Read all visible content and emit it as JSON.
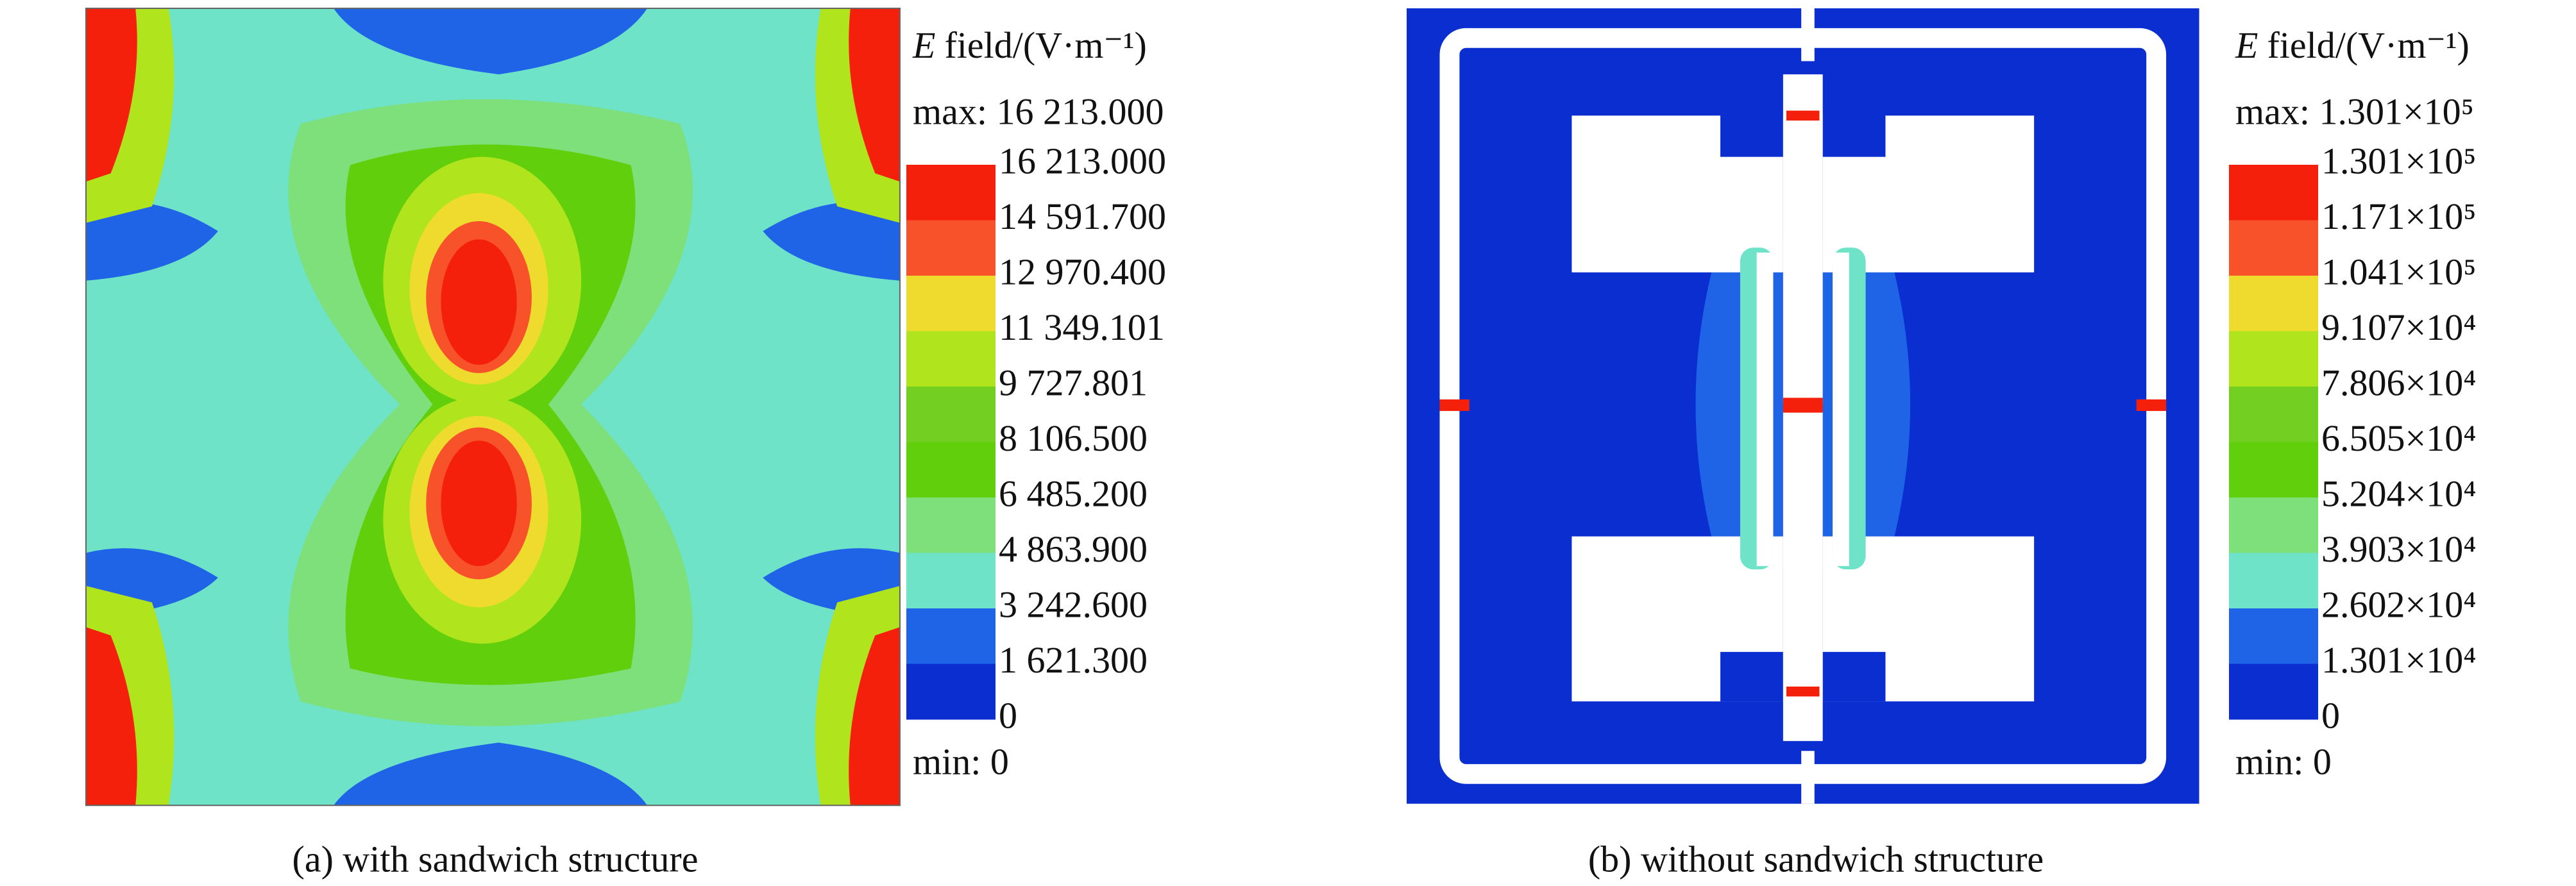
{
  "colors": [
    "#f5200c",
    "#f7522a",
    "#eedb2e",
    "#b0e41c",
    "#74cf23",
    "#61cf0b",
    "#7de07a",
    "#6ee3c8",
    "#1f63e6",
    "#0a2ed0"
  ],
  "panels": [
    {
      "legend_symbol": "E",
      "legend_unit": "field/(V·m⁻¹)",
      "max_label": "max: 16 213.000",
      "levels": [
        "16 213.000",
        "14 591.700",
        "12 970.400",
        "11 349.101",
        "9 727.801",
        "8 106.500",
        "6 485.200",
        "4 863.900",
        "3 242.600",
        "1 621.300",
        "0"
      ],
      "min_label": "min: 0",
      "caption": "(a) with sandwich structure"
    },
    {
      "legend_symbol": "E",
      "legend_unit": "field/(V·m⁻¹)",
      "max_label": "max: 1.301×10⁵",
      "levels": [
        "1.301×10⁵",
        "1.171×10⁵",
        "1.041×10⁵",
        "9.107×10⁴",
        "7.806×10⁴",
        "6.505×10⁴",
        "5.204×10⁴",
        "3.903×10⁴",
        "2.602×10⁴",
        "1.301×10⁴",
        "0"
      ],
      "min_label": "min: 0",
      "caption": "(b) without sandwich structure"
    }
  ]
}
